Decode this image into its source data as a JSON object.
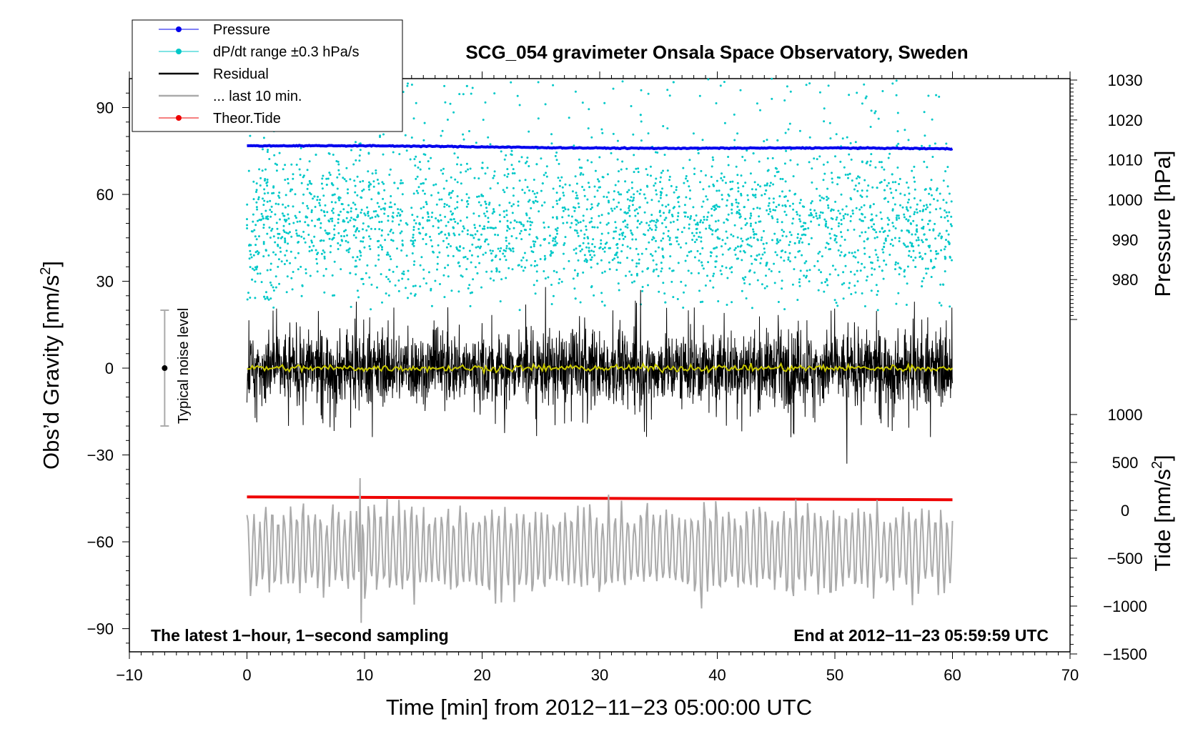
{
  "chart_data": {
    "type": "line",
    "title": "SCG_054 gravimeter Onsala Space Observatory, Sweden",
    "xlabel": "Time [min] from 2012−11−23 05:00:00 UTC",
    "ylabel_left": "Obs'd Gravity [nm/s2]",
    "ylabel_pressure": "Pressure [hPa]",
    "ylabel_tide": "Tide [nm/s2]",
    "xlim": [
      -10,
      70
    ],
    "ylim": [
      -98,
      100
    ],
    "pressure_lim": [
      970,
      1030
    ],
    "tide_lim": [
      -1500,
      1000
    ],
    "x_ticks": [
      "−10",
      "0",
      "10",
      "20",
      "30",
      "40",
      "50",
      "60",
      "70"
    ],
    "x_tick_values": [
      -10,
      0,
      10,
      20,
      30,
      40,
      50,
      60,
      70
    ],
    "y_ticks": [
      "90",
      "60",
      "30",
      "0",
      "−30",
      "−60",
      "−90"
    ],
    "y_tick_values": [
      90,
      60,
      30,
      0,
      -30,
      -60,
      -90
    ],
    "pressure_ticks": [
      "1030",
      "1020",
      "1010",
      "1000",
      "990",
      "980"
    ],
    "pressure_tick_values": [
      1030,
      1020,
      1010,
      1000,
      990,
      980
    ],
    "tide_ticks": [
      "1000",
      "500",
      "0",
      "−500",
      "−1000",
      "−1500"
    ],
    "tide_tick_values": [
      1000,
      500,
      0,
      -500,
      -1000,
      -1500
    ],
    "legend": [
      {
        "label": "Pressure",
        "color": "#0000ee",
        "marker": true
      },
      {
        "label": "dP/dt range ±0.3 hPa/s",
        "color": "#00c8c8",
        "marker": true
      },
      {
        "label": "Residual",
        "color": "#000000",
        "marker": false
      },
      {
        "label": "... last 10 min.",
        "color": "#aaaaaa",
        "marker": false
      },
      {
        "label": "Theor.Tide",
        "color": "#ee0000",
        "marker": true
      }
    ],
    "legend_position": "top-left",
    "annotations": {
      "left": "The latest 1−hour, 1−second sampling",
      "right": "End at 2012−11−23 05:59:59 UTC",
      "noise": "Typical noise level"
    },
    "noise_bar": {
      "x": -7,
      "center": 0,
      "low": -20,
      "high": 20
    },
    "series": [
      {
        "name": "Pressure",
        "axis": "pressure",
        "color": "#0000ee",
        "x_range": [
          0,
          60
        ],
        "start": 1013.5,
        "end": 1012.7
      },
      {
        "name": "dP/dt range ±0.3 hPa/s",
        "axis": "gravity",
        "color": "#00c8c8",
        "x_range": [
          0,
          60
        ],
        "y_range": [
          20,
          100
        ],
        "center": 50,
        "count": 2800
      },
      {
        "name": "Residual",
        "axis": "gravity",
        "color": "#000000",
        "x_range": [
          0,
          60
        ],
        "amplitude": 22,
        "extreme_min": -33,
        "extreme_max": 28
      },
      {
        "name": "Residual smoothed",
        "axis": "gravity",
        "color": "#c8c800",
        "x_range": [
          0,
          60
        ],
        "center": 0
      },
      {
        "name": "... last 10 min.",
        "axis": "gravity",
        "color": "#aaaaaa",
        "x_range": [
          0,
          60
        ],
        "center": -63,
        "min": -88,
        "max": -38
      },
      {
        "name": "Theor.Tide",
        "axis": "tide",
        "color": "#ee0000",
        "x_range": [
          0,
          60
        ],
        "start": 140,
        "end": 110
      }
    ]
  }
}
